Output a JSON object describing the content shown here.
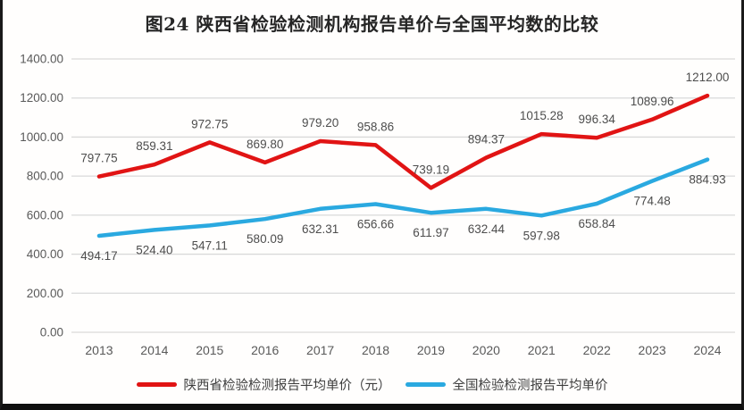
{
  "figure": {
    "title": "图24 陕西省检验检测机构报告单价与全国平均数的比较"
  },
  "chart_data": {
    "type": "line",
    "title": "图24 陕西省检验检测机构报告单价与全国平均数的比较",
    "categories": [
      "2013",
      "2014",
      "2015",
      "2016",
      "2017",
      "2018",
      "2019",
      "2020",
      "2021",
      "2022",
      "2023",
      "2024"
    ],
    "series": [
      {
        "name": "陕西省检验检测报告平均单价（元）",
        "color": "#e11414",
        "values": [
          797.75,
          859.31,
          972.75,
          869.8,
          979.2,
          958.86,
          739.19,
          894.37,
          1015.28,
          996.34,
          1089.96,
          1212.0
        ],
        "label_position": "above"
      },
      {
        "name": "全国检验检测报告平均单价",
        "color": "#2aa9e0",
        "values": [
          494.17,
          524.4,
          547.11,
          580.09,
          632.31,
          656.66,
          611.97,
          632.44,
          597.98,
          658.84,
          774.48,
          884.93
        ],
        "label_position": "below"
      }
    ],
    "ylim": [
      0,
      1400
    ],
    "ytick_step": 200,
    "yticks": [
      "0.00",
      "200.00",
      "400.00",
      "600.00",
      "800.00",
      "1000.00",
      "1200.00",
      "1400.00"
    ],
    "value_decimals": 2,
    "grid": true,
    "legend_position": "bottom",
    "xlabel": "",
    "ylabel": ""
  },
  "colors": {
    "grid": "#d9d9d9",
    "axis_text": "#595959",
    "data_label": "#4d4d4d",
    "title_text": "#262626",
    "frame": "#1a1a1a",
    "background": "#fffefd"
  }
}
